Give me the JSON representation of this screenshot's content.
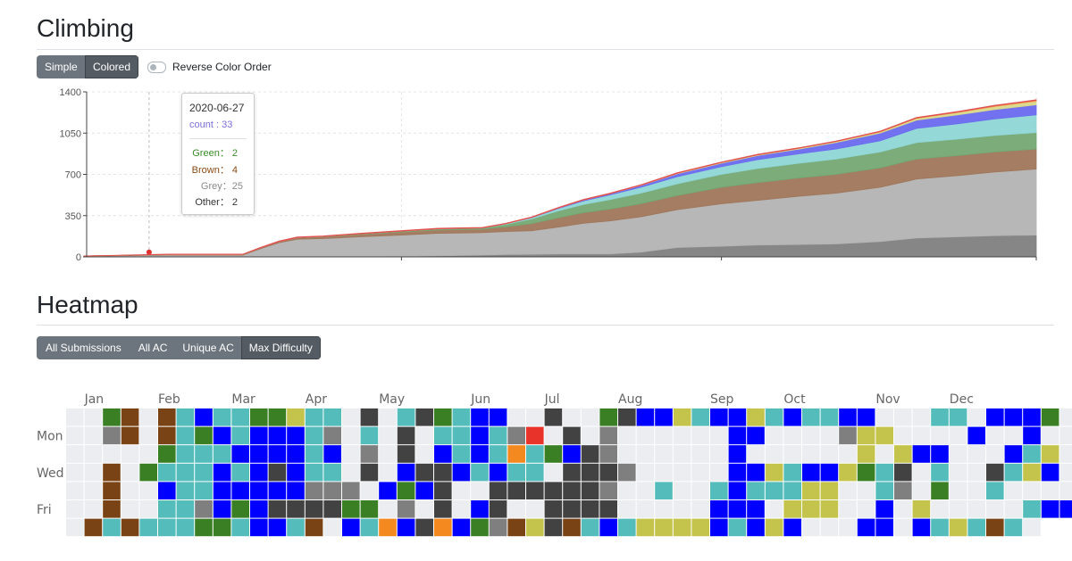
{
  "climbing": {
    "title": "Climbing",
    "mode_buttons": [
      "Simple",
      "Colored"
    ],
    "active_mode": "Colored",
    "reverse_toggle_label": "Reverse Color Order",
    "reverse_toggle_on": false
  },
  "tooltip": {
    "date": "2020-06-27",
    "count_label": "count : 33",
    "rows": [
      {
        "label": "Green： 2",
        "color": "#3a8a2a"
      },
      {
        "label": "Brown： 4",
        "color": "#8b4a13"
      },
      {
        "label": "Grey：25",
        "color": "#8a8a8a"
      },
      {
        "label": "Other： 2",
        "color": "#333333"
      }
    ]
  },
  "heatmap": {
    "title": "Heatmap",
    "mode_buttons": [
      "All Submissions",
      "All AC",
      "Unique AC",
      "Max Difficulty"
    ],
    "active_mode": "Max Difficulty",
    "months": [
      "Jan",
      "Feb",
      "Mar",
      "Apr",
      "May",
      "Jun",
      "Jul",
      "Aug",
      "Sep",
      "Oct",
      "Nov",
      "Dec"
    ],
    "month_col": [
      1,
      5,
      9,
      13,
      17,
      22,
      26,
      30,
      35,
      39,
      44,
      48
    ],
    "weekday_labels": [
      {
        "label": "Mon",
        "row": 1
      },
      {
        "label": "Wed",
        "row": 3
      },
      {
        "label": "Fri",
        "row": 5
      }
    ],
    "colors": {
      "e": "#ebedf0",
      "g": "#7f7f7f",
      "G": "#3a7f24",
      "b": "#7a4315",
      "d": "#424242",
      "c": "#55bcbc",
      "B": "#0000ff",
      "y": "#c4c34b",
      "o": "#f4891f",
      "r": "#e8332b"
    },
    "rows": [
      "eeGbebcBccGGyccedecdGcBBeedeeGdBBycBBycBccBBeeecceBBBGeBee",
      "eegbebcGBcBBBcgecedeccBcgredegeeeeeeBBeeeegyyeeeeBeeBeeBoeB",
      "eeeeeGcccBBBBcBegedeBcBcocGBdgeeeeeeBeeeeeeyeyBBeeeBcyeycee",
      "eebeGcccBcBdBccedeBddBcBccedddgeeeeeBBycBByGcdeceedcyBeeBy",
      "eebeeBccBBBBBgggeBGBdeeddddddgeeceecBcccyyeecgeGeeceeeeeeb",
      "eebeeccgBGBddddGGegedeBdeeddddeeeeeBBBeyyyeeBeyeeeeecBBeyee",
      "ebcbcccGGcBBcbeBcoBdoBGgbydbcBcyyyyBcByBeeeBBeBcycbce"
    ]
  },
  "chart_data": {
    "type": "area",
    "x": [
      "2019-12-31",
      "2020-01-15",
      "2020-02-01",
      "2020-02-15",
      "2020-03-01",
      "2020-03-08",
      "2020-03-15",
      "2020-03-22",
      "2020-04-01",
      "2020-04-15",
      "2020-05-01",
      "2020-05-15",
      "2020-06-01",
      "2020-06-10",
      "2020-06-20",
      "2020-07-01",
      "2020-07-10",
      "2020-07-20",
      "2020-08-01",
      "2020-08-15",
      "2020-09-01",
      "2020-09-15",
      "2020-10-01",
      "2020-10-15",
      "2020-11-01",
      "2020-11-15",
      "2020-12-01",
      "2020-12-15",
      "2020-12-31"
    ],
    "series": [
      {
        "name": "Other",
        "color": "#808080",
        "values": [
          0,
          0,
          0,
          0,
          0,
          0,
          0,
          0,
          0,
          0,
          5,
          10,
          15,
          20,
          22,
          25,
          25,
          25,
          40,
          80,
          90,
          100,
          105,
          110,
          130,
          160,
          170,
          180,
          185
        ]
      },
      {
        "name": "Grey",
        "color": "#b3b3b3",
        "values": [
          5,
          10,
          15,
          15,
          15,
          70,
          120,
          150,
          155,
          170,
          180,
          190,
          190,
          195,
          200,
          230,
          260,
          280,
          300,
          320,
          360,
          380,
          410,
          430,
          460,
          500,
          520,
          540,
          560
        ]
      },
      {
        "name": "Brown",
        "color": "#a0765a",
        "values": [
          2,
          3,
          5,
          5,
          5,
          8,
          10,
          12,
          15,
          20,
          25,
          28,
          30,
          40,
          60,
          80,
          90,
          100,
          110,
          120,
          140,
          150,
          155,
          160,
          165,
          170,
          170,
          170,
          170
        ]
      },
      {
        "name": "Green",
        "color": "#74a873",
        "values": [
          0,
          0,
          0,
          0,
          0,
          0,
          0,
          2,
          3,
          5,
          8,
          10,
          10,
          20,
          40,
          60,
          70,
          80,
          90,
          100,
          110,
          120,
          125,
          130,
          135,
          140,
          140,
          140,
          140
        ]
      },
      {
        "name": "Cyan",
        "color": "#8fd6d6",
        "values": [
          0,
          0,
          0,
          0,
          0,
          0,
          0,
          0,
          0,
          0,
          0,
          0,
          0,
          5,
          10,
          20,
          30,
          40,
          50,
          60,
          65,
          75,
          80,
          85,
          95,
          120,
          130,
          140,
          150
        ]
      },
      {
        "name": "Blue",
        "color": "#6a6af0",
        "values": [
          0,
          0,
          0,
          0,
          0,
          0,
          0,
          0,
          0,
          0,
          0,
          0,
          0,
          0,
          2,
          5,
          8,
          10,
          15,
          25,
          30,
          35,
          40,
          55,
          65,
          70,
          75,
          80,
          85
        ]
      },
      {
        "name": "Yellow",
        "color": "#d8d88a",
        "values": [
          0,
          0,
          0,
          0,
          0,
          0,
          0,
          0,
          0,
          0,
          0,
          0,
          0,
          0,
          0,
          0,
          0,
          0,
          2,
          4,
          5,
          6,
          7,
          8,
          10,
          15,
          20,
          25,
          30
        ]
      },
      {
        "name": "Orange",
        "color": "#f5a050",
        "values": [
          0,
          0,
          0,
          0,
          0,
          0,
          0,
          0,
          0,
          0,
          0,
          0,
          0,
          0,
          0,
          0,
          0,
          0,
          0,
          0,
          0,
          0,
          0,
          0,
          2,
          3,
          4,
          6,
          8
        ]
      },
      {
        "name": "Red",
        "color": "#e05050",
        "values": [
          1,
          2,
          3,
          3,
          3,
          4,
          5,
          5,
          5,
          5,
          5,
          5,
          5,
          5,
          5,
          5,
          5,
          5,
          5,
          5,
          5,
          5,
          5,
          5,
          5,
          5,
          5,
          5,
          5
        ]
      }
    ],
    "yticks": [
      0,
      350,
      700,
      1050,
      1400
    ],
    "ylim": [
      0,
      1400
    ],
    "grid": true,
    "highlight_date": "2020-01-25"
  }
}
